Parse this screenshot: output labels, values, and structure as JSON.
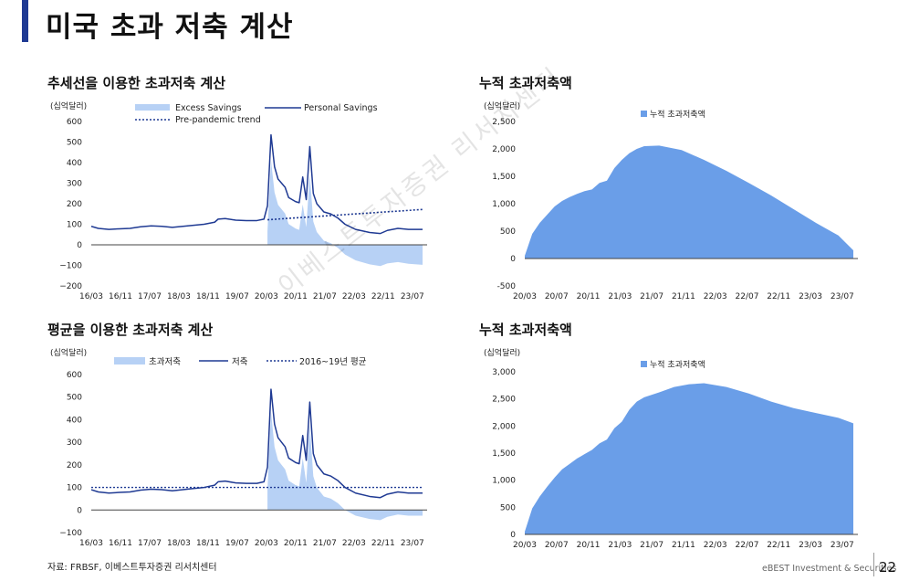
{
  "page": {
    "title": "미국 초과 저축 계산",
    "source": "자료: FRBSF, 이베스트투자증권 리서치센터",
    "brand": "eBEST Investment & Securities",
    "page_number": "22",
    "watermark": "이베스트투자증권 리서치센터",
    "accent_color": "#1f3a93"
  },
  "chart_data": [
    {
      "id": "c1",
      "type": "area",
      "title": "추세선을 이용한 초과저축 계산",
      "unit": "(십억달러)",
      "ylim": [
        -200,
        600
      ],
      "yticks": [
        600,
        500,
        400,
        300,
        200,
        100,
        0,
        -100,
        -200
      ],
      "xtick_labels": [
        "16/03",
        "16/11",
        "17/07",
        "18/03",
        "18/11",
        "19/07",
        "20/03",
        "20/11",
        "21/07",
        "22/03",
        "22/11",
        "23/07"
      ],
      "legend": [
        "Excess Savings",
        "Personal Savings",
        "Pre-pandemic trend"
      ],
      "colors": {
        "excess": "#b7d1f5",
        "personal": "#1f3a93",
        "trend": "#1f3a93"
      },
      "x_start": "2016-01",
      "x_end": "2023-11",
      "trend": {
        "start": "2020-03",
        "end": "2023-11",
        "from": 122,
        "to": 172
      },
      "series": [
        {
          "name": "Personal Savings",
          "points": [
            [
              "2016-01",
              90
            ],
            [
              "2016-03",
              80
            ],
            [
              "2016-06",
              75
            ],
            [
              "2016-09",
              78
            ],
            [
              "2016-12",
              80
            ],
            [
              "2017-03",
              88
            ],
            [
              "2017-06",
              92
            ],
            [
              "2017-09",
              90
            ],
            [
              "2017-12",
              85
            ],
            [
              "2018-03",
              90
            ],
            [
              "2018-06",
              95
            ],
            [
              "2018-09",
              100
            ],
            [
              "2018-12",
              110
            ],
            [
              "2019-01",
              125
            ],
            [
              "2019-03",
              128
            ],
            [
              "2019-06",
              120
            ],
            [
              "2019-09",
              118
            ],
            [
              "2019-12",
              118
            ],
            [
              "2020-02",
              125
            ],
            [
              "2020-03",
              190
            ],
            [
              "2020-04",
              535
            ],
            [
              "2020-05",
              380
            ],
            [
              "2020-06",
              320
            ],
            [
              "2020-08",
              280
            ],
            [
              "2020-09",
              230
            ],
            [
              "2020-11",
              210
            ],
            [
              "2020-12",
              205
            ],
            [
              "2021-01",
              330
            ],
            [
              "2021-02",
              220
            ],
            [
              "2021-03",
              478
            ],
            [
              "2021-04",
              250
            ],
            [
              "2021-05",
              200
            ],
            [
              "2021-07",
              160
            ],
            [
              "2021-09",
              150
            ],
            [
              "2021-11",
              130
            ],
            [
              "2022-01",
              100
            ],
            [
              "2022-04",
              75
            ],
            [
              "2022-08",
              60
            ],
            [
              "2022-11",
              55
            ],
            [
              "2023-01",
              70
            ],
            [
              "2023-04",
              80
            ],
            [
              "2023-07",
              75
            ],
            [
              "2023-11",
              75
            ]
          ]
        }
      ]
    },
    {
      "id": "c2",
      "type": "area",
      "title": "누적 초과저축액",
      "unit": "(십억달러)",
      "ylim": [
        -500,
        2500
      ],
      "yticks": [
        2500,
        2000,
        1500,
        1000,
        500,
        0,
        -500
      ],
      "ytick_labels": [
        "2,500",
        "2,000",
        "1,500",
        "1,000",
        "500",
        "0",
        "-500"
      ],
      "xtick_labels": [
        "20/03",
        "20/07",
        "20/11",
        "21/03",
        "21/07",
        "21/11",
        "22/03",
        "22/07",
        "22/11",
        "23/03",
        "23/07"
      ],
      "legend": [
        "누적 초과저축액"
      ],
      "colors": {
        "fill": "#6a9ee8"
      },
      "x_start": "2020-03",
      "x_end": "2023-11",
      "series": [
        {
          "name": "누적 초과저축액",
          "points": [
            [
              "2020-03",
              50
            ],
            [
              "2020-04",
              450
            ],
            [
              "2020-05",
              650
            ],
            [
              "2020-06",
              800
            ],
            [
              "2020-07",
              950
            ],
            [
              "2020-08",
              1050
            ],
            [
              "2020-09",
              1120
            ],
            [
              "2020-10",
              1180
            ],
            [
              "2020-11",
              1230
            ],
            [
              "2020-12",
              1260
            ],
            [
              "2021-01",
              1380
            ],
            [
              "2021-02",
              1420
            ],
            [
              "2021-03",
              1650
            ],
            [
              "2021-04",
              1800
            ],
            [
              "2021-05",
              1920
            ],
            [
              "2021-06",
              2000
            ],
            [
              "2021-07",
              2050
            ],
            [
              "2021-09",
              2060
            ],
            [
              "2021-12",
              1980
            ],
            [
              "2022-03",
              1800
            ],
            [
              "2022-06",
              1600
            ],
            [
              "2022-09",
              1380
            ],
            [
              "2022-12",
              1150
            ],
            [
              "2023-03",
              900
            ],
            [
              "2023-06",
              650
            ],
            [
              "2023-09",
              420
            ],
            [
              "2023-11",
              150
            ],
            [
              "2023-11",
              -150
            ]
          ]
        }
      ]
    },
    {
      "id": "c3",
      "type": "area",
      "title": "평균을 이용한 초과저축 계산",
      "unit": "(십억달러)",
      "ylim": [
        -100,
        600
      ],
      "yticks": [
        600,
        500,
        400,
        300,
        200,
        100,
        0,
        -100
      ],
      "xtick_labels": [
        "16/03",
        "16/11",
        "17/07",
        "18/03",
        "18/11",
        "19/07",
        "20/03",
        "20/11",
        "21/07",
        "22/03",
        "22/11",
        "23/07"
      ],
      "legend": [
        "초과저축",
        "저축",
        "2016~19년 평균"
      ],
      "colors": {
        "excess": "#b7d1f5",
        "personal": "#1f3a93",
        "trend": "#1f3a93"
      },
      "x_start": "2016-01",
      "x_end": "2023-11",
      "average": 100,
      "series": [
        {
          "name": "저축",
          "points": [
            [
              "2016-01",
              90
            ],
            [
              "2016-03",
              80
            ],
            [
              "2016-06",
              75
            ],
            [
              "2016-09",
              78
            ],
            [
              "2016-12",
              80
            ],
            [
              "2017-03",
              88
            ],
            [
              "2017-06",
              92
            ],
            [
              "2017-09",
              90
            ],
            [
              "2017-12",
              85
            ],
            [
              "2018-03",
              90
            ],
            [
              "2018-06",
              95
            ],
            [
              "2018-09",
              100
            ],
            [
              "2018-12",
              110
            ],
            [
              "2019-01",
              125
            ],
            [
              "2019-03",
              128
            ],
            [
              "2019-06",
              120
            ],
            [
              "2019-09",
              118
            ],
            [
              "2019-12",
              118
            ],
            [
              "2020-02",
              125
            ],
            [
              "2020-03",
              190
            ],
            [
              "2020-04",
              535
            ],
            [
              "2020-05",
              380
            ],
            [
              "2020-06",
              320
            ],
            [
              "2020-08",
              280
            ],
            [
              "2020-09",
              230
            ],
            [
              "2020-11",
              210
            ],
            [
              "2020-12",
              205
            ],
            [
              "2021-01",
              330
            ],
            [
              "2021-02",
              220
            ],
            [
              "2021-03",
              478
            ],
            [
              "2021-04",
              250
            ],
            [
              "2021-05",
              200
            ],
            [
              "2021-07",
              160
            ],
            [
              "2021-09",
              150
            ],
            [
              "2021-11",
              130
            ],
            [
              "2022-01",
              100
            ],
            [
              "2022-04",
              75
            ],
            [
              "2022-08",
              60
            ],
            [
              "2022-11",
              55
            ],
            [
              "2023-01",
              70
            ],
            [
              "2023-04",
              80
            ],
            [
              "2023-07",
              75
            ],
            [
              "2023-11",
              75
            ]
          ]
        }
      ]
    },
    {
      "id": "c4",
      "type": "area",
      "title": "누적 초과저축액",
      "unit": "(십억달러)",
      "ylim": [
        0,
        3000
      ],
      "yticks": [
        3000,
        2500,
        2000,
        1500,
        1000,
        500,
        0
      ],
      "ytick_labels": [
        "3,000",
        "2,500",
        "2,000",
        "1,500",
        "1,000",
        "500",
        "0"
      ],
      "xtick_labels": [
        "20/03",
        "20/07",
        "20/11",
        "21/03",
        "21/07",
        "21/11",
        "22/03",
        "22/07",
        "22/11",
        "23/03",
        "23/07"
      ],
      "legend": [
        "누적 초과저축액"
      ],
      "colors": {
        "fill": "#6a9ee8"
      },
      "x_start": "2020-03",
      "x_end": "2023-11",
      "series": [
        {
          "name": "누적 초과저축액",
          "points": [
            [
              "2020-03",
              50
            ],
            [
              "2020-04",
              480
            ],
            [
              "2020-05",
              700
            ],
            [
              "2020-06",
              880
            ],
            [
              "2020-07",
              1050
            ],
            [
              "2020-08",
              1200
            ],
            [
              "2020-09",
              1300
            ],
            [
              "2020-10",
              1400
            ],
            [
              "2020-11",
              1480
            ],
            [
              "2020-12",
              1560
            ],
            [
              "2021-01",
              1680
            ],
            [
              "2021-02",
              1750
            ],
            [
              "2021-03",
              1960
            ],
            [
              "2021-04",
              2080
            ],
            [
              "2021-05",
              2300
            ],
            [
              "2021-06",
              2450
            ],
            [
              "2021-07",
              2530
            ],
            [
              "2021-09",
              2620
            ],
            [
              "2021-11",
              2720
            ],
            [
              "2022-01",
              2770
            ],
            [
              "2022-03",
              2790
            ],
            [
              "2022-06",
              2720
            ],
            [
              "2022-09",
              2600
            ],
            [
              "2022-12",
              2450
            ],
            [
              "2023-03",
              2330
            ],
            [
              "2023-06",
              2240
            ],
            [
              "2023-09",
              2150
            ],
            [
              "2023-11",
              2050
            ]
          ]
        }
      ]
    }
  ]
}
